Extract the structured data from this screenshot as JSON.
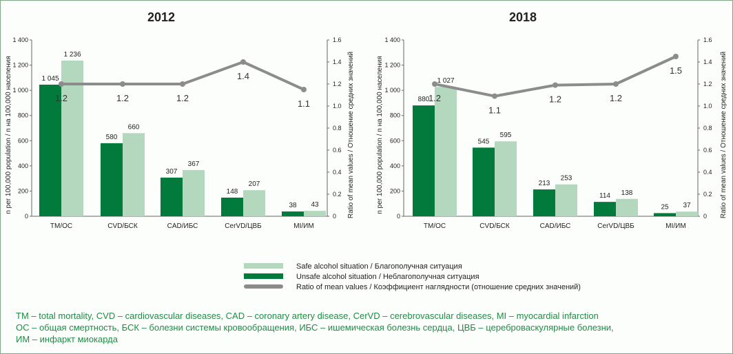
{
  "colors": {
    "unsafe": "#017a3b",
    "safe": "#b3d8bd",
    "ratio": "#8c8c8c",
    "text": "#222222",
    "note": "#1f8c45",
    "frame": "#7aa884"
  },
  "chart_data": [
    {
      "type": "bar",
      "title": "2012",
      "categories": [
        "TM/OC",
        "CVD/БСК",
        "CAD/ИБС",
        "CerVD/ЦВБ",
        "MI/ИМ"
      ],
      "series": [
        {
          "name": "Unsafe alcohol situation / Неблагополучная ситуация",
          "values": [
            1045,
            580,
            307,
            148,
            38
          ],
          "labels": [
            "1 045",
            "580",
            "307",
            "148",
            "38"
          ]
        },
        {
          "name": "Safe alcohol situation / Благополучная ситуация",
          "values": [
            1236,
            660,
            367,
            207,
            43
          ],
          "labels": [
            "1 236",
            "660",
            "367",
            "207",
            "43"
          ]
        }
      ],
      "ratio": {
        "name": "Ratio of mean values / Коэффициент наглядности (отношение средних значений)",
        "values": [
          1.2,
          1.2,
          1.2,
          1.4,
          1.15
        ],
        "labels": [
          "1.2",
          "1.2",
          "1.2",
          "1.4",
          "1.1"
        ]
      },
      "ylabel": "n per 100,000 population / n на 100,000 населения",
      "y2label": "Ratio of mean values / Отношение средних значений",
      "ylim": [
        0,
        1400
      ],
      "y2lim": [
        0,
        1.6
      ],
      "yticks": [
        "0",
        "200",
        "400",
        "600",
        "800",
        "1 000",
        "1 200",
        "1 400"
      ],
      "y2ticks": [
        "0",
        "0.2",
        "0.4",
        "0.6",
        "0.8",
        "1.0",
        "1.2",
        "1.4",
        "1.6"
      ]
    },
    {
      "type": "bar",
      "title": "2018",
      "categories": [
        "TM/OC",
        "CVD/БСК",
        "CAD/ИБС",
        "CerVD/ЦВБ",
        "MI/ИМ"
      ],
      "series": [
        {
          "name": "Unsafe alcohol situation / Неблагополучная ситуация",
          "values": [
            880,
            545,
            213,
            114,
            25
          ],
          "labels": [
            "880",
            "545",
            "213",
            "114",
            "25"
          ]
        },
        {
          "name": "Safe alcohol situation / Благополучная ситуация",
          "values": [
            1027,
            595,
            253,
            138,
            37
          ],
          "labels": [
            "1 027",
            "595",
            "253",
            "138",
            "37"
          ]
        }
      ],
      "ratio": {
        "name": "Ratio of mean values / Коэффициент наглядности (отношение средних значений)",
        "values": [
          1.2,
          1.09,
          1.19,
          1.2,
          1.45
        ],
        "labels": [
          "1.2",
          "1.1",
          "1.2",
          "1.2",
          "1.5"
        ]
      },
      "ylabel": "n per 100,000 population / n на 100,000 населения",
      "y2label": "Ratio of mean values / Отношение средних значений",
      "ylim": [
        0,
        1400
      ],
      "y2lim": [
        0,
        1.6
      ],
      "yticks": [
        "0",
        "200",
        "400",
        "600",
        "800",
        "1 000",
        "1 200",
        "1 400"
      ],
      "y2ticks": [
        "0",
        "0.2",
        "0.4",
        "0.6",
        "0.8",
        "1.0",
        "1.2",
        "1.4",
        "1.6"
      ]
    }
  ],
  "legend": {
    "safe": "Safe alcohol situation / Благополучная ситуация",
    "unsafe": "Unsafe alcohol situation / Неблагополучная ситуация",
    "ratio": "Ratio of mean values / Коэффициент наглядности (отношение средних значений)"
  },
  "notes": {
    "line1": "TM – total mortality, CVD – cardiovascular diseases, CAD – coronary artery disease, CerVD – cerebrovascular diseases, MI – myocardial infarction",
    "line2": "ОС – общая смертность, БСК – болезни системы кровообращения, ИБС – ишемическая болезнь сердца, ЦВБ – цереброваскулярные болезни,",
    "line3": "ИМ – инфаркт миокарда"
  }
}
